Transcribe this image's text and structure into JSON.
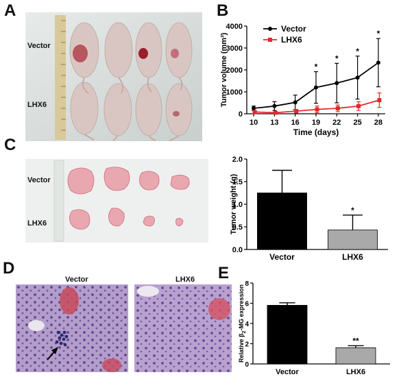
{
  "panels": {
    "a": "A",
    "b": "B",
    "c": "C",
    "d": "D",
    "e": "E"
  },
  "photo_a": {
    "label_top": "Vector",
    "label_bottom": "LHX6"
  },
  "photo_c": {
    "label_top": "Vector",
    "label_bottom": "LHX6"
  },
  "histology": {
    "left_title": "Vector",
    "right_title": "LHX6"
  },
  "colors": {
    "black": "#000000",
    "red": "#e8262b",
    "gray": "#a9a9a9",
    "tissue": "#a487be",
    "tumor": "#e9a5ad",
    "mouse": "#d8c5c1"
  },
  "chart_data": [
    {
      "type": "line",
      "title": "",
      "xlabel": "Time (days)",
      "ylabel": "Tumor volume (mm³)",
      "x": [
        10,
        13,
        16,
        19,
        22,
        25,
        28
      ],
      "xticks": [
        "10",
        "13",
        "16",
        "19",
        "22",
        "25",
        "28"
      ],
      "yticks": [
        "0",
        "1000",
        "2000",
        "3000",
        "4000"
      ],
      "ylim": [
        0,
        4000
      ],
      "legend": "top-left",
      "series": [
        {
          "name": "Vector",
          "color": "#000000",
          "values": [
            250,
            350,
            520,
            1200,
            1400,
            1650,
            2330
          ],
          "errors": [
            100,
            200,
            330,
            720,
            900,
            980,
            1100
          ]
        },
        {
          "name": "LHX6",
          "color": "#e8262b",
          "values": [
            80,
            50,
            120,
            200,
            250,
            350,
            620
          ],
          "errors": [
            40,
            40,
            80,
            150,
            150,
            200,
            330
          ]
        }
      ],
      "annotations": [
        {
          "x": 19,
          "text": "*"
        },
        {
          "x": 22,
          "text": "*"
        },
        {
          "x": 25,
          "text": "*"
        },
        {
          "x": 28,
          "text": "*"
        }
      ]
    },
    {
      "type": "bar",
      "title": "",
      "xlabel": "",
      "ylabel": "Tumor weight (g)",
      "categories": [
        "Vector",
        "LHX6"
      ],
      "values": [
        1.25,
        0.43
      ],
      "errors": [
        0.5,
        0.33
      ],
      "colors": [
        "#000000",
        "#a9a9a9"
      ],
      "yticks": [
        "0.0",
        "0.5",
        "1.0",
        "1.5",
        "2.0"
      ],
      "ylim": [
        0,
        2.0
      ],
      "annotations": [
        {
          "category": "LHX6",
          "text": "*"
        }
      ]
    },
    {
      "type": "bar",
      "title": "",
      "xlabel": "",
      "ylabel_pre": "Relative β",
      "ylabel_sub": "2",
      "ylabel_post": "-MG expression",
      "categories": [
        "Vector",
        "LHX6"
      ],
      "values": [
        5.8,
        1.6
      ],
      "errors": [
        0.25,
        0.2
      ],
      "colors": [
        "#000000",
        "#a9a9a9"
      ],
      "yticks": [
        "0",
        "2",
        "4",
        "6",
        "8"
      ],
      "ylim": [
        0,
        8
      ],
      "annotations": [
        {
          "category": "LHX6",
          "text": "**"
        }
      ]
    }
  ]
}
